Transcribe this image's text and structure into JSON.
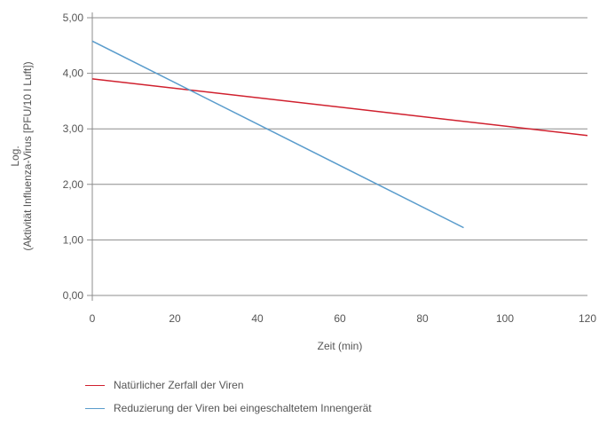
{
  "chart_data": {
    "type": "line",
    "xlabel": "Zeit (min)",
    "ylabel": [
      "Log.",
      "(Aktivität Influenza-Virus [PFU/10 l Luft])"
    ],
    "xlim": [
      0,
      120
    ],
    "ylim": [
      0,
      5
    ],
    "x_ticks": [
      "0",
      "20",
      "40",
      "60",
      "80",
      "100",
      "120"
    ],
    "y_ticks": [
      "0,00",
      "1,00",
      "2,00",
      "3,00",
      "4,00",
      "5,00"
    ],
    "grid": "horizontal",
    "legend_position": "bottom",
    "series": [
      {
        "name": "Natürlicher Zerfall der Viren",
        "color": "#d0202e",
        "points": [
          [
            0,
            3.9
          ],
          [
            120,
            2.88
          ]
        ]
      },
      {
        "name": "Reduzierung der Viren bei eingeschaltetem Innengerät",
        "color": "#5a9ccc",
        "points": [
          [
            0,
            4.58
          ],
          [
            90,
            1.22
          ]
        ]
      }
    ]
  }
}
